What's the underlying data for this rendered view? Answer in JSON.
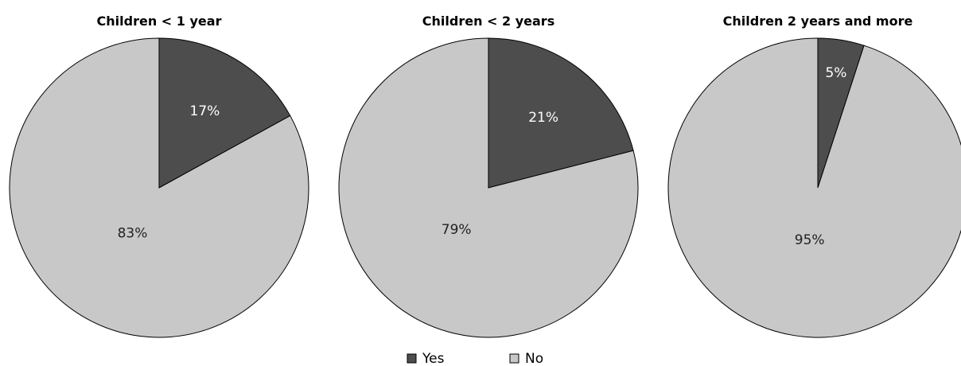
{
  "chart_data": [
    {
      "type": "pie",
      "title": "Children < 1 year",
      "slices": [
        {
          "name": "Yes",
          "value": 17,
          "label": "17%",
          "color": "#4d4d4d"
        },
        {
          "name": "No",
          "value": 83,
          "label": "83%",
          "color": "#c8c8c8"
        }
      ]
    },
    {
      "type": "pie",
      "title": "Children < 2 years",
      "slices": [
        {
          "name": "Yes",
          "value": 21,
          "label": "21%",
          "color": "#4d4d4d"
        },
        {
          "name": "No",
          "value": 79,
          "label": "79%",
          "color": "#c8c8c8"
        }
      ]
    },
    {
      "type": "pie",
      "title": "Children 2 years and more",
      "slices": [
        {
          "name": "Yes",
          "value": 5,
          "label": "5%",
          "color": "#4d4d4d"
        },
        {
          "name": "No",
          "value": 95,
          "label": "95%",
          "color": "#c8c8c8"
        }
      ]
    }
  ],
  "legend": {
    "placement": "bottom-center",
    "items": [
      {
        "name": "Yes",
        "color": "#4d4d4d"
      },
      {
        "name": "No",
        "color": "#c8c8c8"
      }
    ]
  }
}
